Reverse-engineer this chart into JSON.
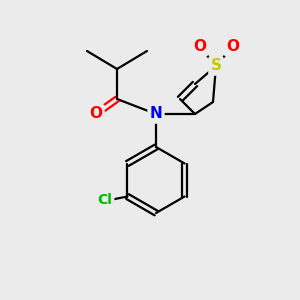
{
  "background_color": "#ebebeb",
  "bond_color": "#000000",
  "bond_width": 1.6,
  "atom_colors": {
    "N": "#0000ff",
    "O": "#ff0000",
    "S": "#c8c800",
    "Cl": "#00bb00",
    "C": "#000000"
  },
  "figsize": [
    3.0,
    3.0
  ],
  "dpi": 100,
  "xlim": [
    0,
    10
  ],
  "ylim": [
    0,
    10
  ]
}
